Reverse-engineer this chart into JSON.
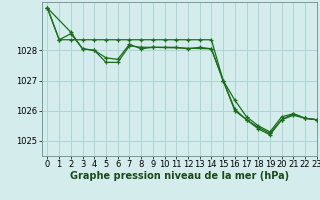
{
  "background_color": "#d4ecec",
  "grid_color": "#aed4d4",
  "line_color": "#1a6e1a",
  "xlabel": "Graphe pression niveau de la mer (hPa)",
  "xlabel_fontsize": 7,
  "tick_fontsize": 6,
  "ylim": [
    1024.5,
    1029.6
  ],
  "xlim": [
    -0.5,
    23
  ],
  "yticks": [
    1025,
    1026,
    1027,
    1028
  ],
  "xticks": [
    0,
    1,
    2,
    3,
    4,
    5,
    6,
    7,
    8,
    9,
    10,
    11,
    12,
    13,
    14,
    15,
    16,
    17,
    18,
    19,
    20,
    21,
    22,
    23
  ],
  "line1_x": [
    0,
    1,
    2,
    3,
    4,
    5,
    6,
    7,
    8,
    9,
    10,
    11,
    12,
    13,
    14,
    15,
    16,
    17,
    18,
    19,
    20,
    21,
    22,
    23
  ],
  "line1_y": [
    1029.4,
    1028.35,
    1028.35,
    1028.35,
    1028.35,
    1028.35,
    1028.35,
    1028.35,
    1028.35,
    1028.35,
    1028.35,
    1028.35,
    1028.35,
    1028.35,
    1028.35,
    1027.0,
    1026.0,
    1025.7,
    1025.4,
    1025.2,
    1025.7,
    1025.85,
    1025.75,
    1025.7
  ],
  "line2_x": [
    0,
    2,
    3,
    4,
    5,
    6,
    7,
    8,
    9,
    10,
    11,
    12,
    13,
    14,
    15,
    16,
    17,
    18,
    19,
    20,
    21,
    22,
    23
  ],
  "line2_y": [
    1029.4,
    1028.6,
    1028.05,
    1028.0,
    1027.75,
    1027.7,
    1028.2,
    1028.05,
    1028.1,
    1028.1,
    1028.1,
    1028.05,
    1028.1,
    1028.05,
    1027.0,
    1026.35,
    1025.8,
    1025.5,
    1025.3,
    1025.8,
    1025.9,
    1025.75,
    1025.7
  ],
  "line3_x": [
    0,
    1,
    2,
    3,
    4,
    5,
    6,
    7,
    8,
    9,
    14,
    15,
    16,
    17,
    18,
    19,
    20,
    21,
    22,
    23
  ],
  "line3_y": [
    1029.4,
    1028.35,
    1028.55,
    1028.05,
    1028.0,
    1027.6,
    1027.6,
    1028.15,
    1028.1,
    1028.1,
    1028.05,
    1027.0,
    1026.05,
    1025.7,
    1025.45,
    1025.25,
    1025.7,
    1025.9,
    1025.75,
    1025.7
  ]
}
